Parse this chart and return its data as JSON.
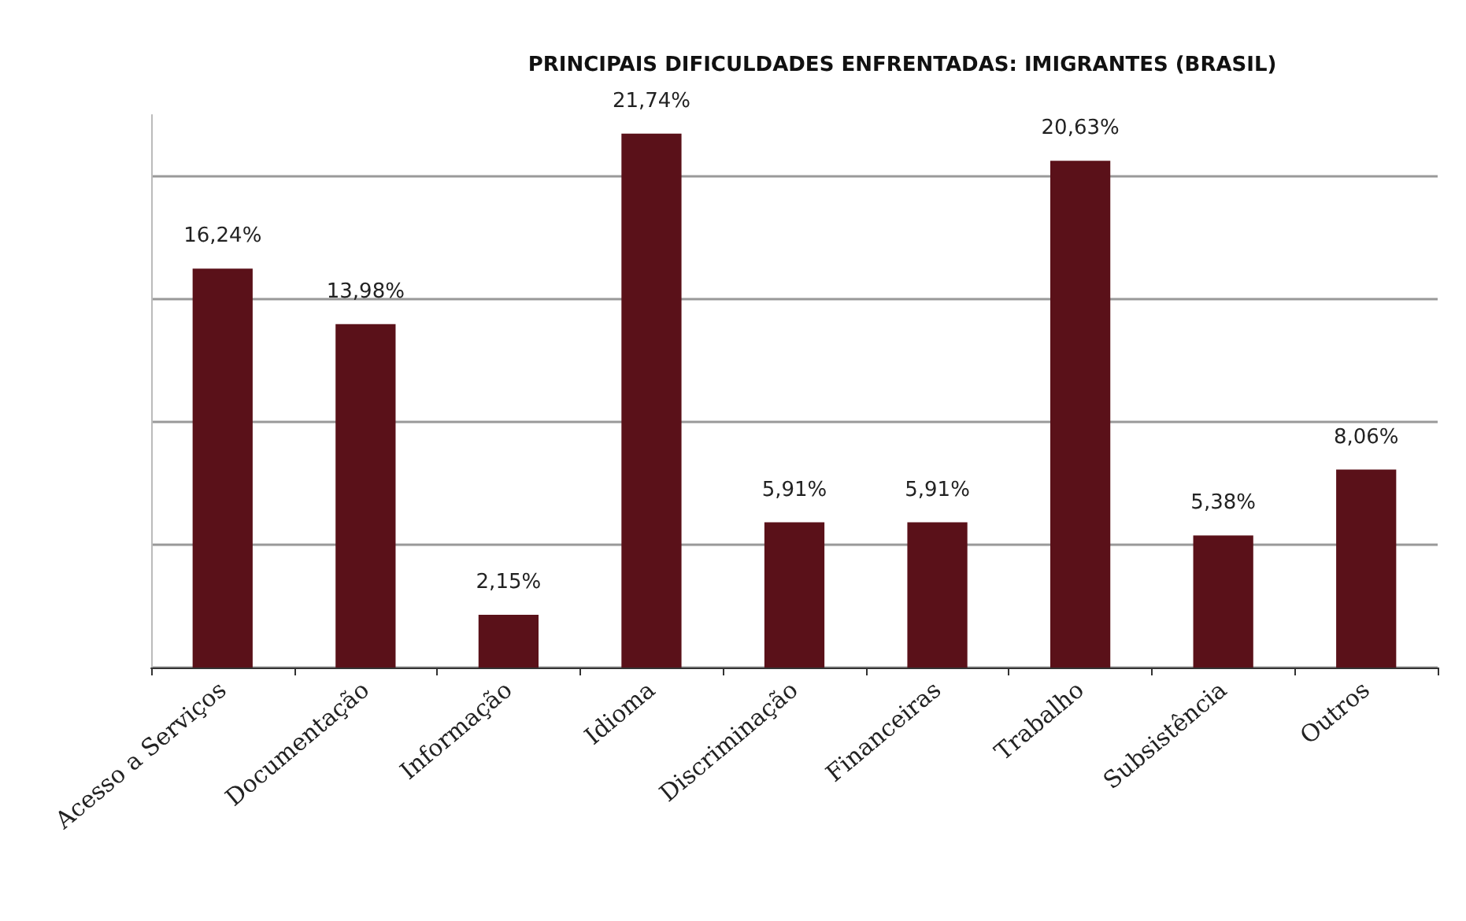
{
  "chart_data": {
    "type": "bar",
    "title": "PRINCIPAIS DIFICULDADES ENFRENTADAS: IMIGRANTES (BRASIL)",
    "categories": [
      "Acesso a Serviços",
      "Documentação",
      "Informação",
      "Idioma",
      "Discriminação",
      "Financeiras",
      "Trabalho",
      "Subsistência",
      "Outros"
    ],
    "values": [
      16.24,
      13.98,
      2.15,
      21.74,
      5.91,
      5.91,
      20.63,
      5.38,
      8.06
    ],
    "value_labels": [
      "16,24%",
      "13,98%",
      "2,15%",
      "21,74%",
      "5,91%",
      "5,91%",
      "20,63%",
      "5,38%",
      "8,06%"
    ],
    "color": "#5a1119",
    "ylim": [
      0,
      22.5
    ],
    "yticks": [
      {
        "value": 0,
        "label": null
      },
      {
        "value": 5,
        "label": null
      },
      {
        "value": 10,
        "label": null
      },
      {
        "value": 15,
        "label": null
      },
      {
        "value": 20,
        "label": null
      }
    ],
    "grid": "y",
    "tick_labels": "x"
  }
}
